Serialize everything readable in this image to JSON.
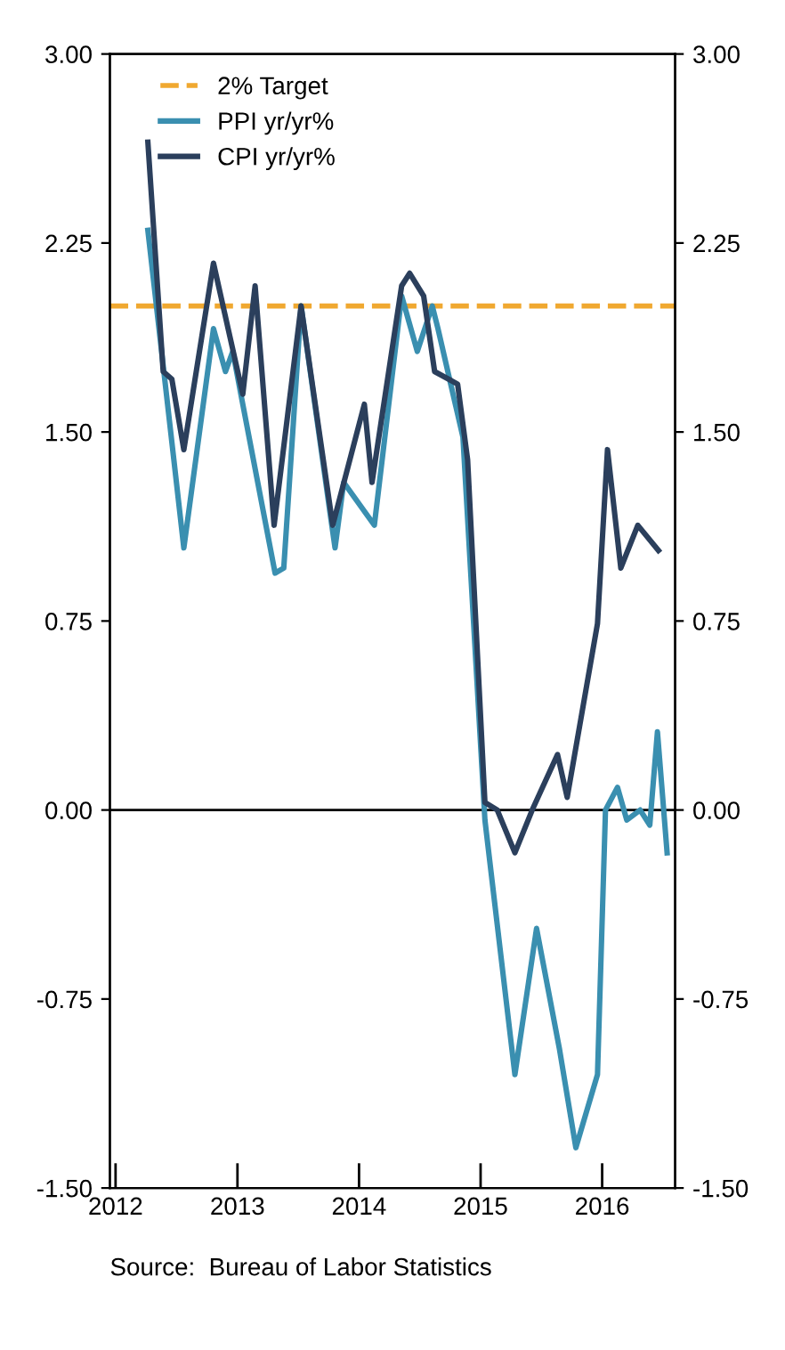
{
  "chart_data": {
    "type": "line",
    "xlim": [
      "2011-12-15",
      "2016-08-07"
    ],
    "xticks": [
      {
        "value": "2012-01-01",
        "label": "2012"
      },
      {
        "value": "2013-01-01",
        "label": "2013"
      },
      {
        "value": "2014-01-01",
        "label": "2014"
      },
      {
        "value": "2015-01-01",
        "label": "2015"
      },
      {
        "value": "2016-01-01",
        "label": "2016"
      }
    ],
    "ylim": [
      -1.5,
      3.0
    ],
    "yticks": [
      {
        "value": -1.5,
        "label": "-1.50"
      },
      {
        "value": -0.75,
        "label": "-0.75"
      },
      {
        "value": 0,
        "label": "0.00"
      },
      {
        "value": 0.75,
        "label": "0.75"
      },
      {
        "value": 1.5,
        "label": "1.50"
      },
      {
        "value": 2.25,
        "label": "2.25"
      },
      {
        "value": 3.0,
        "label": "3.00"
      }
    ],
    "y2lim": [
      -1.5,
      3.0
    ],
    "y2ticks": [
      {
        "value": -1.5,
        "label": "-1.50"
      },
      {
        "value": -0.75,
        "label": "-0.75"
      },
      {
        "value": 0,
        "label": "0.00"
      },
      {
        "value": 0.75,
        "label": "0.75"
      },
      {
        "value": 1.5,
        "label": "1.50"
      },
      {
        "value": 2.25,
        "label": "2.25"
      },
      {
        "value": 3.0,
        "label": "3.00"
      }
    ],
    "series": [
      {
        "name": "PPI yr/yr%",
        "color": "#3a8fb0",
        "x": [
          "2012-04-07",
          "2012-07-24",
          "2012-10-21",
          "2012-11-26",
          "2012-12-18",
          "2013-01-17",
          "2013-04-24",
          "2013-05-20",
          "2013-07-11",
          "2013-10-07",
          "2013-10-21",
          "2013-11-16",
          "2014-02-16",
          "2014-05-09",
          "2014-06-25",
          "2014-08-09",
          "2014-08-26",
          "2014-11-09",
          "2015-01-14",
          "2015-04-14",
          "2015-06-18",
          "2015-08-26",
          "2015-10-14",
          "2015-12-18",
          "2016-01-11",
          "2016-02-16",
          "2016-03-15",
          "2016-04-24",
          "2016-05-23",
          "2016-06-15",
          "2016-07-14"
        ],
        "values": [
          2.3,
          1.04,
          1.91,
          1.74,
          1.82,
          1.61,
          0.94,
          0.96,
          2.0,
          1.17,
          1.04,
          1.3,
          1.13,
          2.04,
          1.82,
          2.0,
          1.91,
          1.48,
          -0.04,
          -1.05,
          -0.47,
          -0.95,
          -1.34,
          -1.05,
          0,
          0.09,
          -0.04,
          0,
          -0.06,
          0.31,
          -0.17
        ]
      },
      {
        "name": "CPI yr/yr%",
        "color": "#2b3f5c",
        "x": [
          "2012-04-07",
          "2012-05-23",
          "2012-06-18",
          "2012-07-24",
          "2012-10-21",
          "2013-01-17",
          "2013-02-23",
          "2013-04-21",
          "2013-07-11",
          "2013-10-14",
          "2014-01-17",
          "2014-02-09",
          "2014-05-09",
          "2014-06-02",
          "2014-07-14",
          "2014-08-16",
          "2014-10-24",
          "2014-11-23",
          "2015-01-14",
          "2015-02-20",
          "2015-04-14",
          "2015-06-05",
          "2015-08-20",
          "2015-09-18",
          "2015-12-18",
          "2016-01-17",
          "2016-02-26",
          "2016-04-17",
          "2016-06-18"
        ],
        "values": [
          2.65,
          1.74,
          1.71,
          1.43,
          2.17,
          1.65,
          2.08,
          1.13,
          2.0,
          1.13,
          1.61,
          1.3,
          2.08,
          2.13,
          2.04,
          1.74,
          1.69,
          1.39,
          0.03,
          0,
          -0.17,
          0,
          0.22,
          0.05,
          0.74,
          1.43,
          0.96,
          1.13,
          1.03
        ]
      }
    ],
    "ref_lines": [
      {
        "axis": "y",
        "value": 2.0,
        "label": "2% Target",
        "color": "#f0a830",
        "line_style": "dashed"
      },
      {
        "axis": "y",
        "value": 0,
        "label": null,
        "color": "#000000",
        "line_style": "solid"
      }
    ],
    "legend": "top left",
    "grid": false,
    "annotations": [
      "Source:  Bureau of Labor Statistics"
    ]
  }
}
